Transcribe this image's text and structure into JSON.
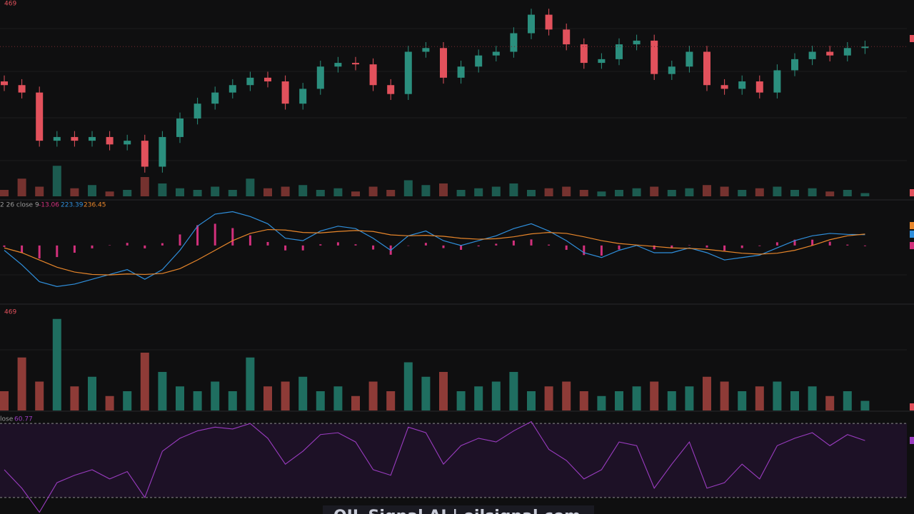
{
  "chart_data": [
    {
      "type": "candlestick",
      "scale_label": 469,
      "up_color": "#2b8f7e",
      "down_color": "#e2515c",
      "ylim": [
        40,
        300
      ],
      "open": [
        195,
        190,
        180,
        115,
        120,
        115,
        120,
        110,
        115,
        80,
        120,
        145,
        165,
        180,
        190,
        200,
        195,
        165,
        185,
        215,
        220,
        218,
        190,
        178,
        235,
        240,
        200,
        215,
        230,
        235,
        260,
        285,
        265,
        245,
        220,
        225,
        245,
        250,
        205,
        215,
        235,
        190,
        185,
        195,
        180,
        210,
        225,
        235,
        230,
        240
      ],
      "high": [
        203,
        198,
        188,
        128,
        128,
        128,
        128,
        123,
        123,
        128,
        153,
        173,
        188,
        198,
        208,
        208,
        203,
        193,
        223,
        228,
        228,
        226,
        198,
        243,
        248,
        248,
        223,
        238,
        243,
        268,
        293,
        293,
        273,
        253,
        233,
        253,
        258,
        258,
        223,
        243,
        243,
        198,
        203,
        203,
        218,
        233,
        243,
        243,
        248,
        250
      ],
      "low": [
        182,
        172,
        107,
        107,
        107,
        107,
        102,
        102,
        72,
        72,
        112,
        137,
        157,
        172,
        182,
        187,
        157,
        157,
        177,
        207,
        210,
        182,
        170,
        170,
        227,
        192,
        192,
        207,
        222,
        227,
        252,
        257,
        237,
        212,
        212,
        217,
        237,
        197,
        197,
        207,
        182,
        177,
        177,
        172,
        172,
        202,
        217,
        222,
        222,
        232
      ],
      "close": [
        190,
        180,
        115,
        120,
        115,
        120,
        110,
        115,
        80,
        120,
        145,
        165,
        180,
        190,
        200,
        195,
        165,
        185,
        215,
        220,
        218,
        190,
        178,
        235,
        240,
        200,
        215,
        230,
        235,
        260,
        285,
        265,
        245,
        220,
        225,
        245,
        250,
        205,
        215,
        235,
        190,
        185,
        195,
        180,
        210,
        225,
        235,
        230,
        240,
        242
      ]
    },
    {
      "type": "macd",
      "title": "2 26 close 9",
      "ylim": [
        -1200,
        900
      ],
      "series": [
        {
          "color": "#d2307c",
          "values": [
            -30,
            -150,
            -270,
            -240,
            -150,
            -60,
            6,
            54,
            -60,
            48,
            228,
            420,
            450,
            360,
            210,
            72,
            -102,
            -102,
            24,
            66,
            24,
            -84,
            -192,
            0,
            54,
            -54,
            -90,
            -18,
            36,
            102,
            126,
            18,
            -90,
            -198,
            -210,
            -84,
            -6,
            -78,
            -60,
            6,
            -42,
            -108,
            -54,
            -12,
            66,
            120,
            120,
            78,
            18,
            -13.06
          ]
        },
        {
          "color": "#2f8fdc",
          "values": [
            -100,
            -400,
            -750,
            -850,
            -800,
            -700,
            -600,
            -500,
            -700,
            -500,
            -100,
            400,
            650,
            700,
            600,
            450,
            150,
            100,
            300,
            400,
            350,
            150,
            -100,
            200,
            300,
            100,
            0,
            100,
            200,
            350,
            450,
            300,
            100,
            -150,
            -250,
            -100,
            0,
            -150,
            -150,
            -50,
            -150,
            -300,
            -250,
            -200,
            -50,
            100,
            200,
            250,
            230,
            223.39
          ]
        },
        {
          "color": "#e8862a",
          "values": [
            -50,
            -150,
            -300,
            -450,
            -550,
            -600,
            -610,
            -590,
            -600,
            -580,
            -480,
            -300,
            -100,
            100,
            250,
            330,
            320,
            270,
            260,
            290,
            310,
            290,
            220,
            200,
            210,
            190,
            150,
            130,
            140,
            180,
            240,
            270,
            250,
            180,
            100,
            40,
            10,
            -20,
            -50,
            -60,
            -80,
            -120,
            -160,
            -180,
            -160,
            -100,
            0,
            120,
            200,
            236.45
          ]
        }
      ]
    },
    {
      "type": "volume",
      "scale_label": 469,
      "ylim": [
        0,
        100
      ],
      "up_color": "#1f6e60",
      "down_color": "#8e3b37",
      "values": [
        20,
        55,
        30,
        95,
        25,
        35,
        15,
        20,
        60,
        40,
        25,
        20,
        30,
        20,
        55,
        25,
        30,
        35,
        20,
        25,
        15,
        30,
        20,
        50,
        35,
        40,
        20,
        25,
        30,
        40,
        20,
        25,
        30,
        20,
        15,
        20,
        25,
        30,
        20,
        25,
        35,
        30,
        20,
        25,
        30,
        20,
        25,
        15,
        20,
        10
      ]
    },
    {
      "type": "rsi",
      "title": "lose",
      "ylim": [
        28,
        72
      ],
      "bands": [
        30,
        70
      ],
      "color": "#9a3cc0",
      "values": [
        45,
        35,
        22,
        38,
        42,
        45,
        40,
        44,
        30,
        55,
        62,
        66,
        68,
        67,
        70,
        62,
        48,
        55,
        64,
        65,
        60,
        45,
        42,
        68,
        65,
        48,
        58,
        62,
        60,
        66,
        71,
        56,
        50,
        40,
        45,
        60,
        58,
        35,
        48,
        60,
        35,
        38,
        48,
        40,
        58,
        62,
        65,
        58,
        64,
        60.77
      ]
    }
  ],
  "watermark": "OIL Signal AI | oilsignal.com"
}
